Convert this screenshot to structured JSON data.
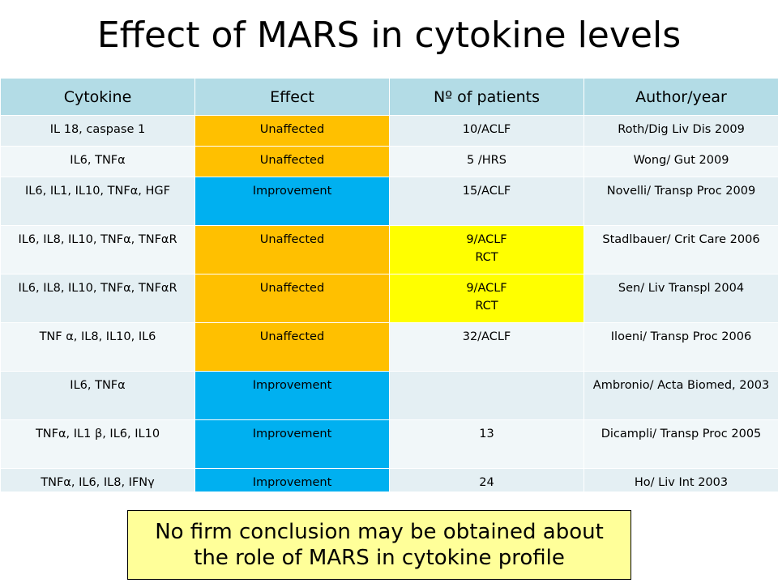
{
  "slide": {
    "title": "Effect of MARS in cytokine levels"
  },
  "colors": {
    "header_bg": "#b3dce6",
    "row_odd_bg": "#e4eff3",
    "row_even_bg": "#f1f7f9",
    "unaffected": "#ffc000",
    "improvement": "#00b0f0",
    "highlight": "#ffff00",
    "conclusion_bg": "#ffff99"
  },
  "table": {
    "headers": [
      "Cytokine",
      "Effect",
      "Nº of patients",
      "Author/year"
    ],
    "rows": [
      {
        "cytokine": "IL 18, caspase 1",
        "effect": "Unaffected",
        "patients": [
          "10/ACLF"
        ],
        "author": "Roth/Dig Liv Dis 2009"
      },
      {
        "cytokine": "IL6, TNFα",
        "effect": "Unaffected",
        "patients": [
          "5 /HRS"
        ],
        "author": "Wong/ Gut 2009"
      },
      {
        "cytokine": "IL6, IL1, IL10, TNFα, HGF",
        "effect": "Improvement",
        "patients": [
          "15/ACLF"
        ],
        "author": "Novelli/ Transp Proc 2009"
      },
      {
        "cytokine": "IL6, IL8, IL10, TNFα, TNFαR",
        "effect": "Unaffected",
        "patients": [
          "9/ACLF",
          "RCT"
        ],
        "author": "Stadlbauer/ Crit Care 2006"
      },
      {
        "cytokine": "IL6, IL8, IL10, TNFα, TNFαR",
        "effect": "Unaffected",
        "patients": [
          "9/ACLF",
          "RCT"
        ],
        "author": "Sen/ Liv Transpl 2004"
      },
      {
        "cytokine": "TNF α, IL8, IL10, IL6",
        "effect": "Unaffected",
        "patients": [
          "32/ACLF"
        ],
        "author": "Iloeni/ Transp Proc 2006"
      },
      {
        "cytokine": "IL6, TNFα",
        "effect": "Improvement",
        "patients": [
          ""
        ],
        "author": "Ambronio/ Acta Biomed, 2003"
      },
      {
        "cytokine": "TNFα, IL1 β, IL6, IL10",
        "effect": "Improvement",
        "patients": [
          "13"
        ],
        "author": "Dicampli/ Transp Proc 2005"
      },
      {
        "cytokine": "TNFα, IL6, IL8, IFNγ",
        "effect": "Improvement",
        "patients": [
          "24"
        ],
        "author": "Ho/ Liv Int 2003"
      }
    ]
  },
  "conclusion": {
    "line1": "No firm conclusion may be obtained about",
    "line2": "the role of MARS in cytokine profile"
  }
}
